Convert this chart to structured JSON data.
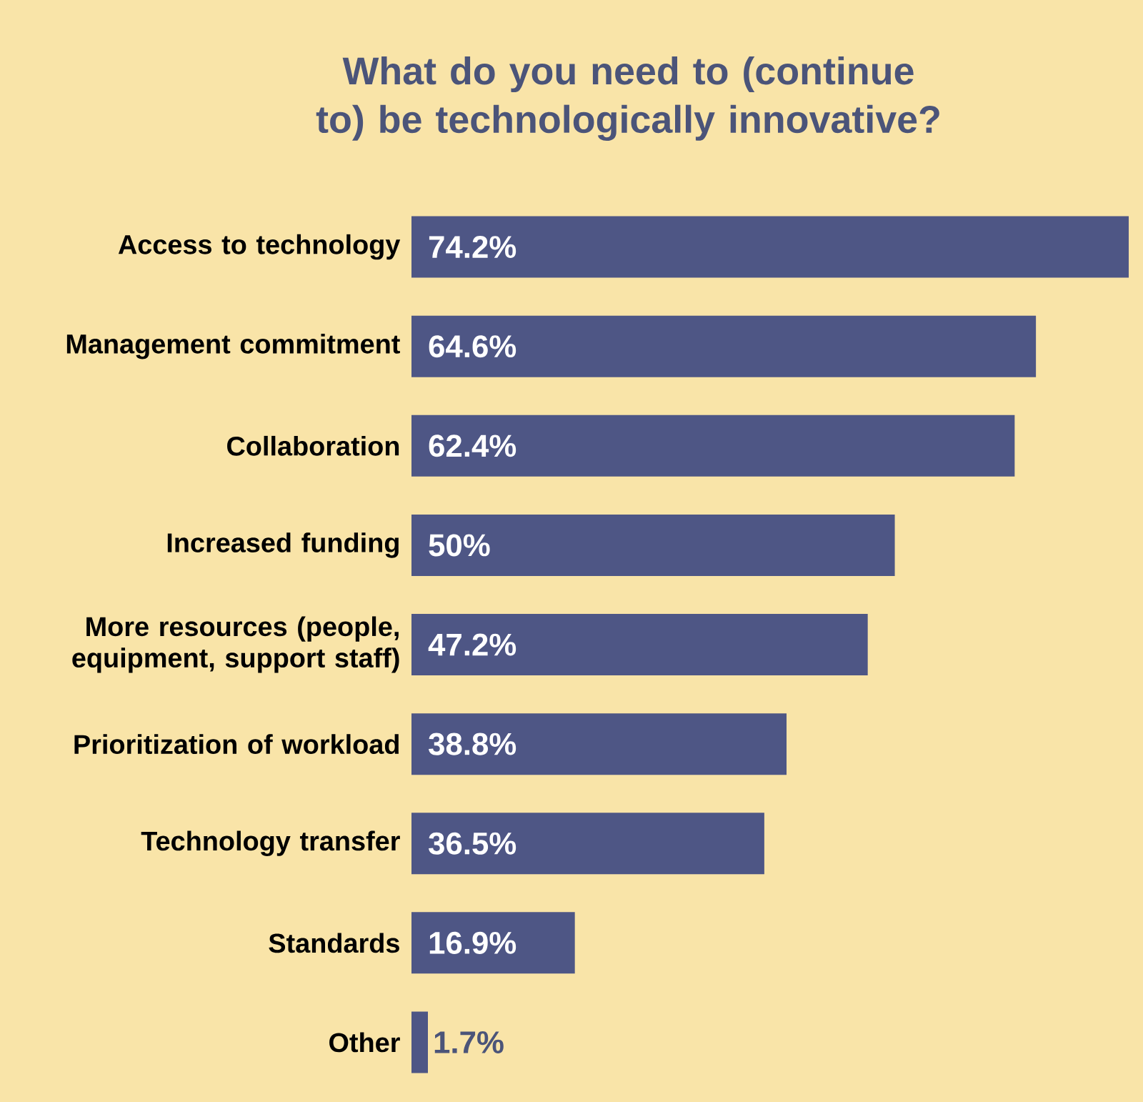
{
  "chart_data": {
    "type": "bar",
    "orientation": "horizontal",
    "title": "What do you need to (continue to) be technologically innovative?",
    "categories": [
      "Access to technology",
      "Management commitment",
      "Collaboration",
      "Increased funding",
      "More resources (people, equipment, support staff)",
      "Prioritization of workload",
      "Technology transfer",
      "Standards",
      "Other"
    ],
    "values": [
      74.2,
      64.6,
      62.4,
      50,
      47.2,
      38.8,
      36.5,
      16.9,
      1.7
    ],
    "value_labels": [
      "74.2%",
      "64.6%",
      "62.4%",
      "50%",
      "47.2%",
      "38.8%",
      "36.5%",
      "16.9%",
      "1.7%"
    ],
    "color": "#4e5685"
  }
}
